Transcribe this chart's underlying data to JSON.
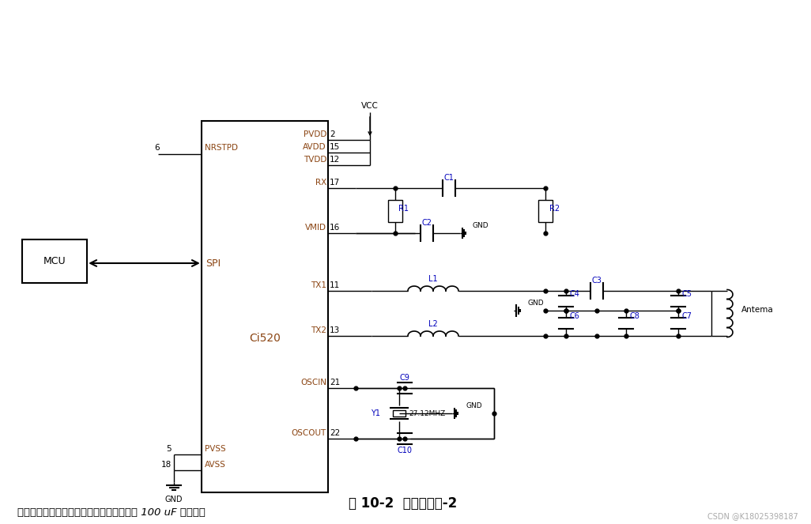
{
  "bg_color": "#ffffff",
  "line_color": "#000000",
  "blue_color": "#0000bb",
  "brown_color": "#8B4513",
  "title": "图 10-2  典型应用图-2",
  "note": "注：使用纽扣电池工作时，电源部分推荐加 100 uF 大电容；",
  "watermark": "CSDN @K18025398187",
  "ic_label": "Ci520",
  "mcu_label": "MCU",
  "spi_label": "SPI"
}
